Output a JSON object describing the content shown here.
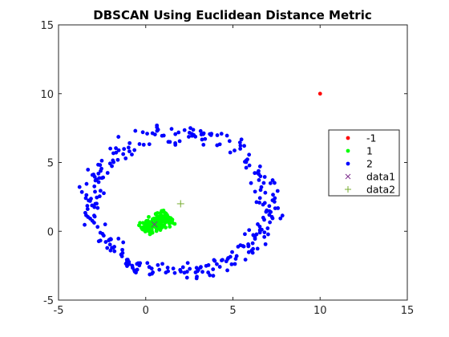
{
  "chart_data": {
    "type": "scatter",
    "title": "DBSCAN Using Euclidean Distance Metric",
    "xlabel": "",
    "ylabel": "",
    "xlim": [
      -5,
      15
    ],
    "ylim": [
      -5,
      15
    ],
    "xticks": [
      -5,
      0,
      5,
      10,
      15
    ],
    "yticks": [
      -5,
      0,
      5,
      10,
      15
    ],
    "grid": false,
    "legend_position": "right",
    "series": [
      {
        "name": "-1",
        "marker": "dot",
        "color": "#ff0000",
        "points": [
          [
            10,
            10
          ]
        ]
      },
      {
        "name": "1",
        "marker": "dot",
        "color": "#00ff00",
        "cluster": {
          "center": [
            0.6,
            0.6
          ],
          "spread": [
            0.9,
            0.55
          ],
          "angle_deg": 38,
          "count": 180
        }
      },
      {
        "name": "2",
        "marker": "dot",
        "color": "#0000ff",
        "ring": {
          "center": [
            2.0,
            2.0
          ],
          "radius_x": 5.1,
          "radius_y": 5.1,
          "noise": 0.35,
          "count": 300
        }
      },
      {
        "name": "data1",
        "marker": "x",
        "color": "#7e2f8e",
        "points": [
          [
            0.5,
            0.5
          ]
        ]
      },
      {
        "name": "data2",
        "marker": "+",
        "color": "#77ac30",
        "points": [
          [
            2.0,
            2.0
          ]
        ]
      }
    ]
  }
}
